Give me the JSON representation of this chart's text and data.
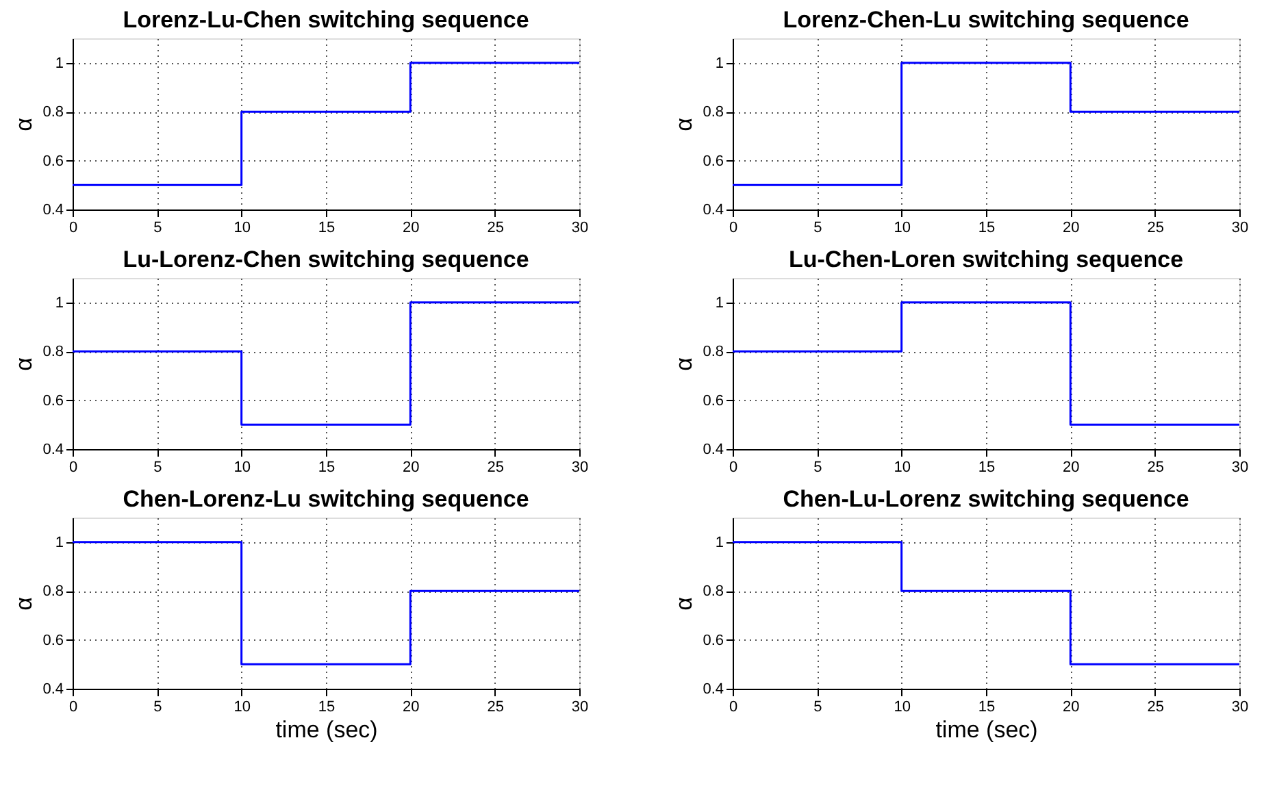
{
  "chart_data": [
    {
      "type": "step",
      "title": "Lorenz-Lu-Chen switching sequence",
      "ylabel": "α",
      "x": [
        0,
        10,
        20,
        30
      ],
      "values": [
        0.5,
        0.8,
        1,
        1
      ],
      "color": "#0000ff",
      "xlim": [
        0,
        30
      ],
      "xticks": [
        0,
        5,
        10,
        15,
        20,
        25,
        30
      ],
      "ylim": [
        0.4,
        1.1
      ],
      "yticks": [
        0.4,
        0.6,
        0.8,
        1
      ],
      "grid": true
    },
    {
      "type": "step",
      "title": "Lorenz-Chen-Lu switching sequence",
      "ylabel": "α",
      "x": [
        0,
        10,
        20,
        30
      ],
      "values": [
        0.5,
        1,
        0.8,
        0.8
      ],
      "color": "#0000ff",
      "xlim": [
        0,
        30
      ],
      "xticks": [
        0,
        5,
        10,
        15,
        20,
        25,
        30
      ],
      "ylim": [
        0.4,
        1.1
      ],
      "yticks": [
        0.4,
        0.6,
        0.8,
        1
      ],
      "grid": true
    },
    {
      "type": "step",
      "title": "Lu-Lorenz-Chen switching sequence",
      "ylabel": "α",
      "x": [
        0,
        10,
        20,
        30
      ],
      "values": [
        0.8,
        0.5,
        1,
        1
      ],
      "color": "#0000ff",
      "xlim": [
        0,
        30
      ],
      "xticks": [
        0,
        5,
        10,
        15,
        20,
        25,
        30
      ],
      "ylim": [
        0.4,
        1.1
      ],
      "yticks": [
        0.4,
        0.6,
        0.8,
        1
      ],
      "grid": true
    },
    {
      "type": "step",
      "title": "Lu-Chen-Loren switching sequence",
      "ylabel": "α",
      "x": [
        0,
        10,
        20,
        30
      ],
      "values": [
        0.8,
        1,
        0.5,
        0.5
      ],
      "color": "#0000ff",
      "xlim": [
        0,
        30
      ],
      "xticks": [
        0,
        5,
        10,
        15,
        20,
        25,
        30
      ],
      "ylim": [
        0.4,
        1.1
      ],
      "yticks": [
        0.4,
        0.6,
        0.8,
        1
      ],
      "grid": true
    },
    {
      "type": "step",
      "title": "Chen-Lorenz-Lu switching sequence",
      "ylabel": "α",
      "xlabel": "time (sec)",
      "x": [
        0,
        10,
        20,
        30
      ],
      "values": [
        1,
        0.5,
        0.8,
        0.8
      ],
      "color": "#0000ff",
      "xlim": [
        0,
        30
      ],
      "xticks": [
        0,
        5,
        10,
        15,
        20,
        25,
        30
      ],
      "ylim": [
        0.4,
        1.1
      ],
      "yticks": [
        0.4,
        0.6,
        0.8,
        1
      ],
      "grid": true
    },
    {
      "type": "step",
      "title": "Chen-Lu-Lorenz switching sequence",
      "ylabel": "α",
      "xlabel": "time (sec)",
      "x": [
        0,
        10,
        20,
        30
      ],
      "values": [
        1,
        0.8,
        0.5,
        0.5
      ],
      "color": "#0000ff",
      "xlim": [
        0,
        30
      ],
      "xticks": [
        0,
        5,
        10,
        15,
        20,
        25,
        30
      ],
      "ylim": [
        0.4,
        1.1
      ],
      "yticks": [
        0.4,
        0.6,
        0.8,
        1
      ],
      "grid": true
    }
  ]
}
